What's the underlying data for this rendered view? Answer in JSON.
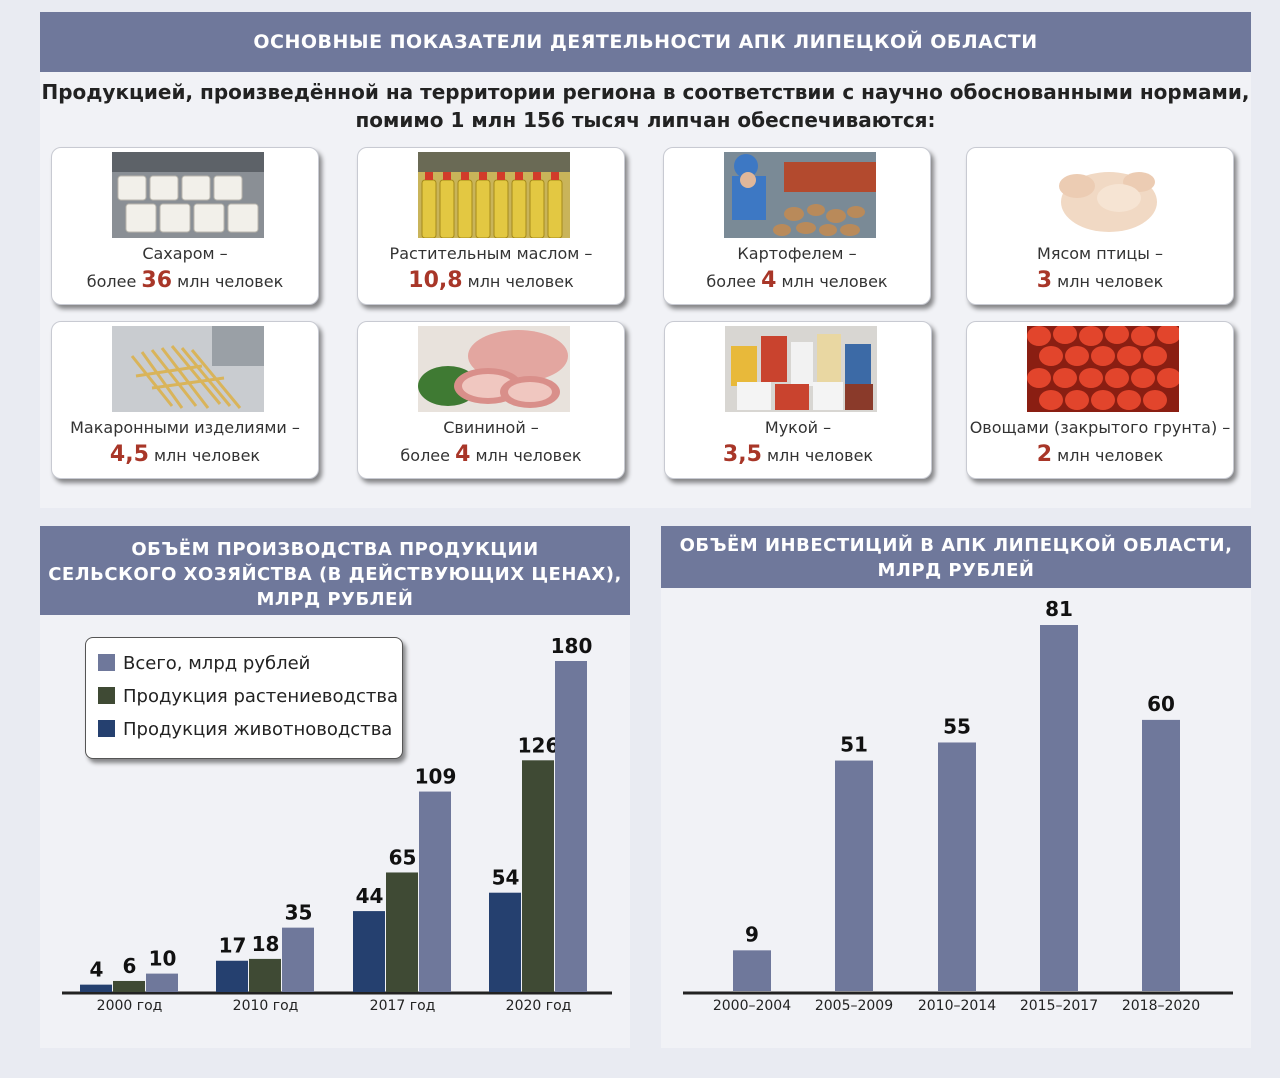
{
  "header": {
    "title": "ОСНОВНЫЕ ПОКАЗАТЕЛИ ДЕЯТЕЛЬНОСТИ АПК ЛИПЕЦКОЙ ОБЛАСТИ",
    "intro_line1": "Продукцией, произведённой на территории региона в соответствии с научно обоснованными нормами,",
    "intro_line2": "помимо 1 млн 156 тысяч липчан обеспечиваются:"
  },
  "cards": [
    {
      "label": "Сахаром –",
      "prefix": "более ",
      "number": "36",
      "suffix": " млн человек",
      "icon": "sugar-photo"
    },
    {
      "label": "Растительным маслом –",
      "prefix": "",
      "number": "10,8",
      "suffix": " млн человек",
      "icon": "oil-photo"
    },
    {
      "label": "Картофелем –",
      "prefix": "более ",
      "number": "4",
      "suffix": " млн человек",
      "icon": "potato-photo"
    },
    {
      "label": "Мясом птицы –",
      "prefix": "",
      "number": "3",
      "suffix": " млн человек",
      "icon": "poultry-photo"
    },
    {
      "label": "Макаронными изделиями –",
      "prefix": "",
      "number": "4,5",
      "suffix": " млн человек",
      "icon": "pasta-photo"
    },
    {
      "label": "Свининой –",
      "prefix": "более ",
      "number": "4",
      "suffix": " млн человек",
      "icon": "pork-photo"
    },
    {
      "label": "Мукой –",
      "prefix": "",
      "number": "3,5",
      "suffix": " млн человек",
      "icon": "flour-photo"
    },
    {
      "label": "Овощами (закрытого грунта) –",
      "prefix": "",
      "number": "2",
      "suffix": " млн человек",
      "icon": "tomato-photo"
    }
  ],
  "colors": {
    "banner": "#6f789b",
    "total": "#6f789b",
    "crops": "#3f4a34",
    "livestock": "#25406f",
    "highlight_number": "#a83628"
  },
  "chart_data": [
    {
      "type": "bar",
      "title_line1": "ОБЪЁМ ПРОИЗВОДСТВА ПРОДУКЦИИ",
      "title_line2": "СЕЛЬСКОГО ХОЗЯЙСТВА (В ДЕЙСТВУЮЩИХ ЦЕНАХ),",
      "title_line3": "МЛРД РУБЛЕЙ",
      "categories": [
        "2000 год",
        "2010 год",
        "2017 год",
        "2020 год"
      ],
      "series": [
        {
          "name": "Продукция животноводства",
          "values": [
            4,
            17,
            44,
            54
          ]
        },
        {
          "name": "Продукция растениеводства",
          "values": [
            6,
            18,
            65,
            126
          ]
        },
        {
          "name": "Всего, млрд рублей",
          "values": [
            10,
            35,
            109,
            180
          ]
        }
      ],
      "legend": [
        "Всего, млрд рублей",
        "Продукция растениеводства",
        "Продукция животноводства"
      ],
      "legend_position": "top-left",
      "ylim": [
        0,
        180
      ],
      "grid": false
    },
    {
      "type": "bar",
      "title_line1": "ОБЪЁМ ИНВЕСТИЦИЙ В АПК ЛИПЕЦКОЙ ОБЛАСТИ,",
      "title_line2": "МЛРД РУБЛЕЙ",
      "categories": [
        "2000–2004",
        "2005–2009",
        "2010–2014",
        "2015–2017",
        "2018–2020"
      ],
      "values": [
        9,
        51,
        55,
        81,
        60
      ],
      "ylim": [
        0,
        81
      ],
      "grid": false
    }
  ]
}
